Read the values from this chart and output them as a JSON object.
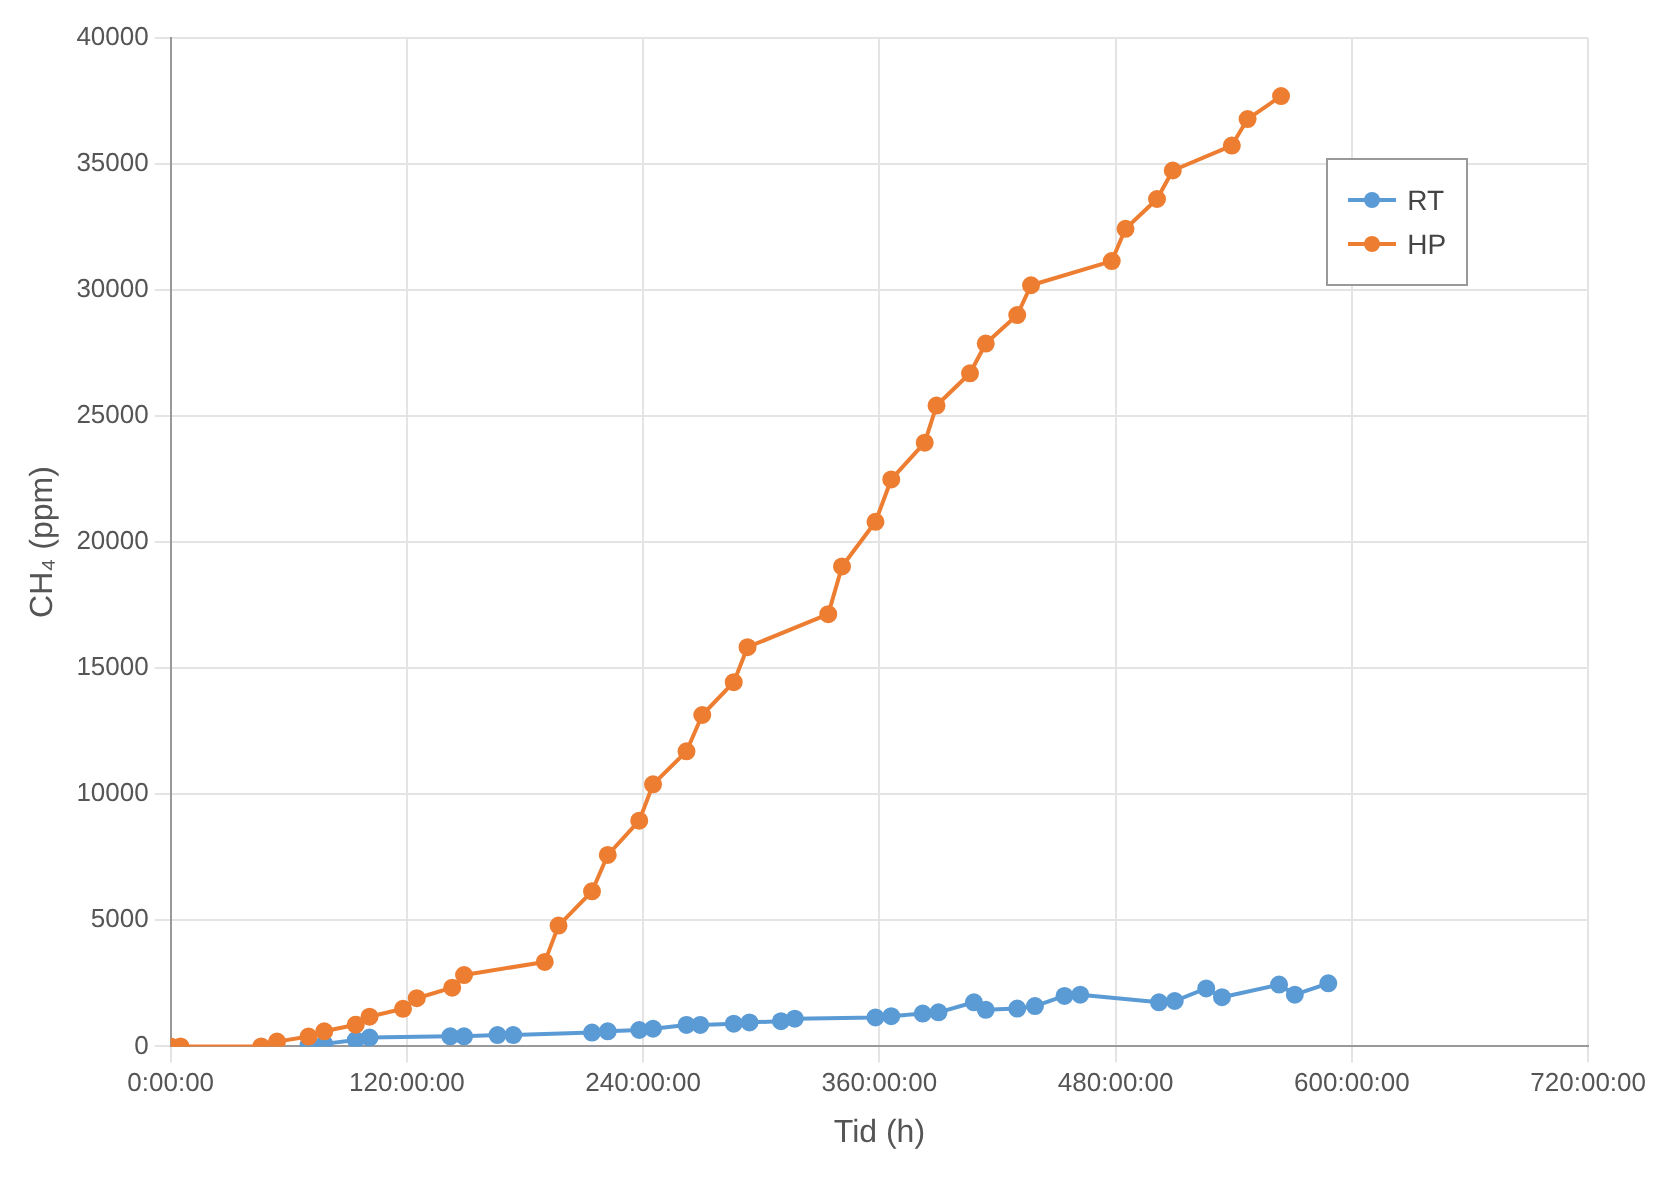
{
  "chart_data": {
    "type": "line",
    "xlabel": "Tid (h)",
    "ylabel": "CH₄ (ppm)",
    "xlim": [
      0,
      720
    ],
    "ylim": [
      0,
      40000
    ],
    "xticks": [
      {
        "value": 0,
        "label": "0:00:00"
      },
      {
        "value": 120,
        "label": "120:00:00"
      },
      {
        "value": 240,
        "label": "240:00:00"
      },
      {
        "value": 360,
        "label": "360:00:00"
      },
      {
        "value": 480,
        "label": "480:00:00"
      },
      {
        "value": 600,
        "label": "600:00:00"
      },
      {
        "value": 720,
        "label": "720:00:00"
      }
    ],
    "yticks": [
      0,
      5000,
      10000,
      15000,
      20000,
      25000,
      30000,
      35000,
      40000
    ],
    "grid": true,
    "legend": "top right",
    "marker": "circle",
    "line_style": "solid",
    "series": [
      {
        "name": "RT",
        "color": "#5b9bd5",
        "x": [
          70,
          78,
          94,
          101,
          142,
          149,
          166,
          174,
          214,
          222,
          238,
          245,
          262,
          269,
          286,
          294,
          310,
          317,
          358,
          366,
          382,
          390,
          408,
          414,
          430,
          439,
          454,
          462,
          502,
          510,
          526,
          534,
          563,
          571,
          588
        ],
        "values": [
          50,
          100,
          250,
          350,
          400,
          400,
          450,
          450,
          550,
          600,
          650,
          700,
          850,
          850,
          900,
          950,
          1000,
          1100,
          1150,
          1200,
          1300,
          1350,
          1750,
          1450,
          1500,
          1600,
          2000,
          2050,
          1750,
          1800,
          2300,
          1950,
          2450,
          2050,
          2500
        ]
      },
      {
        "name": "HP",
        "color": "#ed7d31",
        "x": [
          0,
          5,
          46,
          54,
          70,
          78,
          94,
          101,
          118,
          125,
          143,
          149,
          190,
          197,
          214,
          222,
          238,
          245,
          262,
          270,
          286,
          293,
          334,
          341,
          358,
          366,
          383,
          389,
          406,
          414,
          430,
          437,
          478,
          485,
          501,
          509,
          539,
          547,
          564
        ],
        "values": [
          0,
          0,
          0,
          190,
          390,
          600,
          860,
          1180,
          1490,
          1910,
          2330,
          2830,
          3350,
          4790,
          6150,
          7590,
          8950,
          10390,
          11700,
          13140,
          14440,
          15830,
          17140,
          19030,
          20800,
          22480,
          23940,
          25410,
          26690,
          27870,
          29000,
          30180,
          31140,
          32420,
          33600,
          34730,
          35720,
          36770,
          37680
        ]
      }
    ]
  }
}
